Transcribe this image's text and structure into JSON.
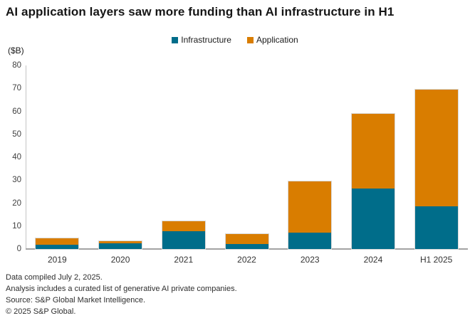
{
  "title": "AI application layers saw more funding than AI infrastructure in H1",
  "unit_label": "($B)",
  "colors": {
    "infrastructure": "#006d8a",
    "application": "#d97d00",
    "axis_line": "#c4c4c4",
    "baseline": "#a3a3a3",
    "title_text": "#161616",
    "body_text": "#333333"
  },
  "chart_data": {
    "type": "bar",
    "stacked": true,
    "title": "AI application layers saw more funding than AI infrastructure in H1",
    "xlabel": "",
    "ylabel": "($B)",
    "ylim": [
      0,
      80
    ],
    "ytick_step": 10,
    "grid": false,
    "legend_position": "top-center",
    "categories": [
      "2019",
      "2020",
      "2021",
      "2022",
      "2023",
      "2024",
      "H1 2025"
    ],
    "series": [
      {
        "name": "Infrastructure",
        "color": "#006d8a",
        "values": [
          1.9,
          2.4,
          7.8,
          2.2,
          7.0,
          26.5,
          18.7
        ]
      },
      {
        "name": "Application",
        "color": "#d97d00",
        "values": [
          2.7,
          1.0,
          4.4,
          4.4,
          22.5,
          32.4,
          50.8
        ]
      }
    ]
  },
  "footnotes": [
    "Data compiled July 2, 2025.",
    "Analysis includes a curated list of generative AI private companies.",
    "Source: S&P Global Market Intelligence.",
    "© 2025 S&P Global."
  ]
}
